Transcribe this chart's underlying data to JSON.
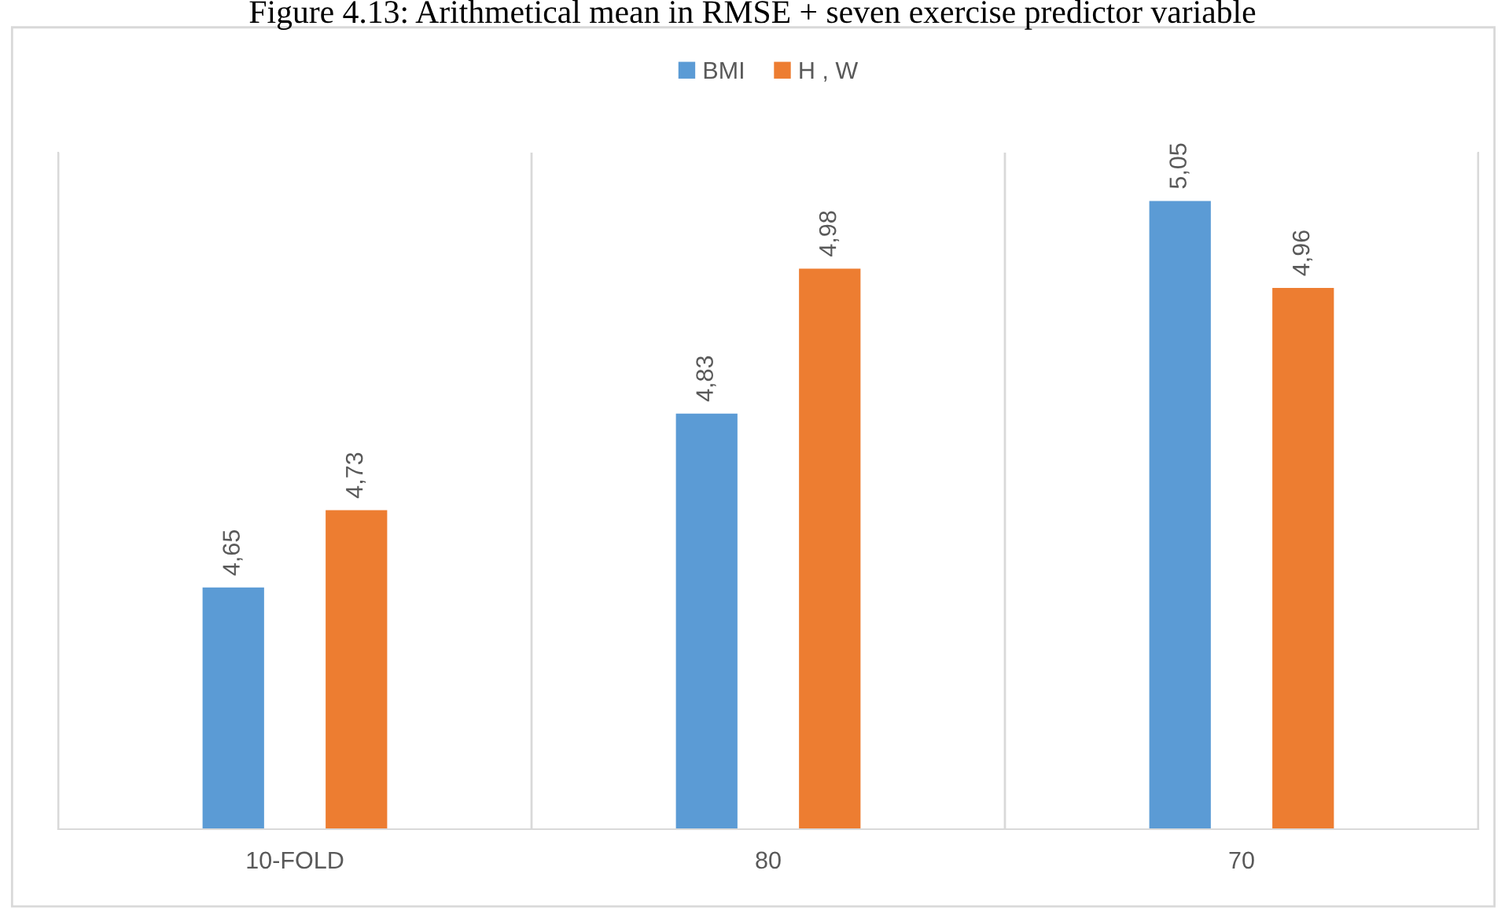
{
  "chart_data": {
    "type": "bar",
    "title": "Figure 4.13: Arithmetical mean in RMSE + seven exercise predictor variable",
    "categories": [
      "10-FOLD",
      "80",
      "70"
    ],
    "series": [
      {
        "name": "BMI",
        "color": "#5b9bd5",
        "values": [
          4.65,
          4.83,
          5.05
        ],
        "value_labels": [
          "4,65",
          "4,83",
          "5,05"
        ]
      },
      {
        "name": "H , W",
        "color": "#ed7d31",
        "values": [
          4.73,
          4.98,
          4.96
        ],
        "value_labels": [
          "4,73",
          "4,98",
          "4,96"
        ]
      }
    ],
    "ylim": [
      4.4,
      5.1
    ],
    "tick_labels": "x",
    "grid": "x",
    "legend": "top"
  }
}
